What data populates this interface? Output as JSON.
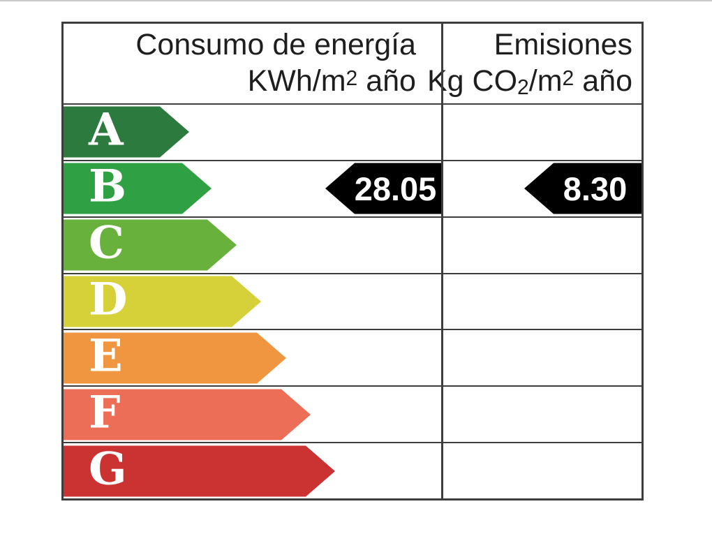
{
  "page": {
    "background": "#ffffff",
    "edge_line_color": "#c9c9c9"
  },
  "colors": {
    "table_border": "#3d3d3d",
    "header_text": "#1e1e1e",
    "rating_letter_text": "#ffffff",
    "value_arrow_bg": "#000000",
    "value_text": "#ffffff"
  },
  "header": {
    "col1": {
      "line1": "Consumo de energía",
      "line2_parts": [
        {
          "t": "KWh/m"
        },
        {
          "t": "2"
        },
        {
          "t": " año"
        }
      ]
    },
    "col2": {
      "line1": "Emisiones",
      "line2_parts": [
        {
          "t": "Kg CO"
        },
        {
          "t": "2"
        },
        {
          "t": "/m"
        },
        {
          "t": "2"
        },
        {
          "t": " año"
        }
      ]
    }
  },
  "chart_data": {
    "type": "table",
    "columns": [
      "Consumo de energía KWh/m2 año",
      "Emisiones Kg CO2/m2 año"
    ],
    "rating_scale": [
      {
        "letter": "A",
        "color": "#2d7a3e",
        "arrow_length": 180
      },
      {
        "letter": "B",
        "color": "#2fa043",
        "arrow_length": 212
      },
      {
        "letter": "C",
        "color": "#68b13d",
        "arrow_length": 248
      },
      {
        "letter": "D",
        "color": "#d6d139",
        "arrow_length": 283
      },
      {
        "letter": "E",
        "color": "#f09640",
        "arrow_length": 319
      },
      {
        "letter": "F",
        "color": "#ec6e56",
        "arrow_length": 354
      },
      {
        "letter": "G",
        "color": "#cb3333",
        "arrow_length": 389
      }
    ],
    "selected_rating": "B",
    "values": {
      "consumo": "28.05",
      "emisiones": "8.30"
    }
  }
}
